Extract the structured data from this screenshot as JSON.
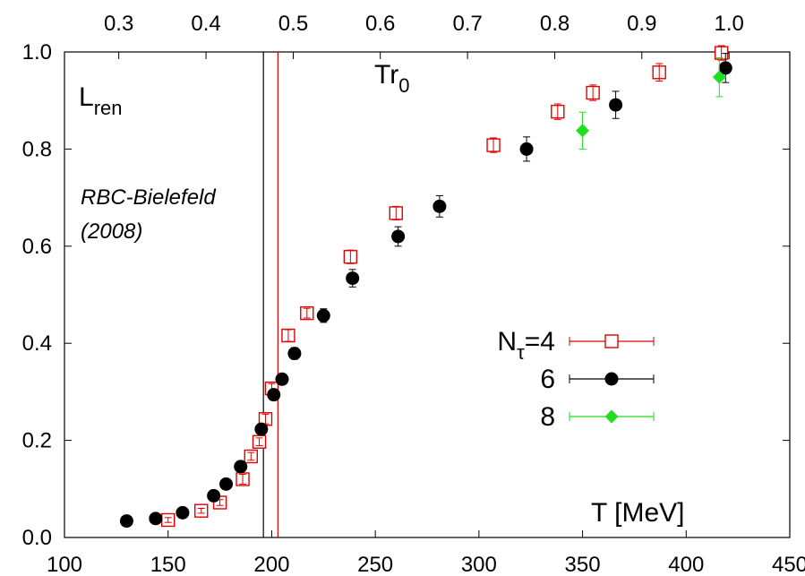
{
  "chart_data": {
    "type": "scatter",
    "y_label_main": "L",
    "y_label_sub": "ren",
    "x_label": "T [MeV]",
    "top_label_main": "Tr",
    "top_label_sub": "0",
    "annotation_line1": "RBC-Bielefeld",
    "annotation_line2": "(2008)",
    "xlim": [
      100,
      450
    ],
    "ylim": [
      0.0,
      1.0
    ],
    "x_ticks": [
      "100",
      "150",
      "200",
      "250",
      "300",
      "350",
      "400",
      "450"
    ],
    "y_ticks": [
      "0.0",
      "0.2",
      "0.4",
      "0.6",
      "0.8",
      "1.0"
    ],
    "top_ticks": [
      "0.3",
      "0.4",
      "0.5",
      "0.6",
      "0.7",
      "0.8",
      "0.9",
      "1.0"
    ],
    "top_tick_T": [
      126.2,
      168.3,
      210.4,
      252.4,
      294.5,
      336.6,
      378.6,
      420.7
    ],
    "vertical_lines": [
      {
        "x": 196,
        "color": "#000000"
      },
      {
        "x": 203,
        "color": "#cc0000"
      }
    ],
    "legend_label_main": "N",
    "legend_label_sub": "τ",
    "legend_label_rest": "=4",
    "legend": [
      "6",
      "8"
    ],
    "legend_position": "right",
    "series": [
      {
        "marker": "open-square",
        "color": "#e00000",
        "points": [
          {
            "x": 150,
            "y": 0.036,
            "err": 0.005
          },
          {
            "x": 166,
            "y": 0.055,
            "err": 0.005
          },
          {
            "x": 175,
            "y": 0.072,
            "err": 0.006
          },
          {
            "x": 186,
            "y": 0.12,
            "err": 0.01
          },
          {
            "x": 190,
            "y": 0.167,
            "err": 0.008
          },
          {
            "x": 194,
            "y": 0.197,
            "err": 0.008
          },
          {
            "x": 197,
            "y": 0.244,
            "err": 0.01
          },
          {
            "x": 200,
            "y": 0.307,
            "err": 0.01
          },
          {
            "x": 208,
            "y": 0.416,
            "err": 0.012
          },
          {
            "x": 217,
            "y": 0.462,
            "err": 0.01
          },
          {
            "x": 238,
            "y": 0.578,
            "err": 0.014
          },
          {
            "x": 260,
            "y": 0.668,
            "err": 0.014
          },
          {
            "x": 307,
            "y": 0.808,
            "err": 0.015
          },
          {
            "x": 338,
            "y": 0.877,
            "err": 0.016
          },
          {
            "x": 355,
            "y": 0.916,
            "err": 0.016
          },
          {
            "x": 387,
            "y": 0.958,
            "err": 0.018
          },
          {
            "x": 417,
            "y": 0.998,
            "err": 0.015
          }
        ]
      },
      {
        "marker": "filled-circle",
        "color": "#000000",
        "points": [
          {
            "x": 130,
            "y": 0.034,
            "err": 0.004
          },
          {
            "x": 144,
            "y": 0.039,
            "err": 0.004
          },
          {
            "x": 157,
            "y": 0.051,
            "err": 0.005
          },
          {
            "x": 172,
            "y": 0.086,
            "err": 0.006
          },
          {
            "x": 178,
            "y": 0.11,
            "err": 0.006
          },
          {
            "x": 185,
            "y": 0.146,
            "err": 0.008
          },
          {
            "x": 195,
            "y": 0.223,
            "err": 0.008
          },
          {
            "x": 201,
            "y": 0.294,
            "err": 0.01
          },
          {
            "x": 205,
            "y": 0.326,
            "err": 0.01
          },
          {
            "x": 211,
            "y": 0.379,
            "err": 0.012
          },
          {
            "x": 225,
            "y": 0.457,
            "err": 0.014
          },
          {
            "x": 239,
            "y": 0.534,
            "err": 0.018
          },
          {
            "x": 261,
            "y": 0.62,
            "err": 0.02
          },
          {
            "x": 281,
            "y": 0.682,
            "err": 0.022
          },
          {
            "x": 323,
            "y": 0.8,
            "err": 0.025
          },
          {
            "x": 366,
            "y": 0.891,
            "err": 0.028
          },
          {
            "x": 419,
            "y": 0.967,
            "err": 0.03
          }
        ]
      },
      {
        "marker": "filled-diamond",
        "color": "#22dd22",
        "points": [
          {
            "x": 350,
            "y": 0.838,
            "err": 0.038
          },
          {
            "x": 416,
            "y": 0.948,
            "err": 0.04
          }
        ]
      }
    ]
  }
}
